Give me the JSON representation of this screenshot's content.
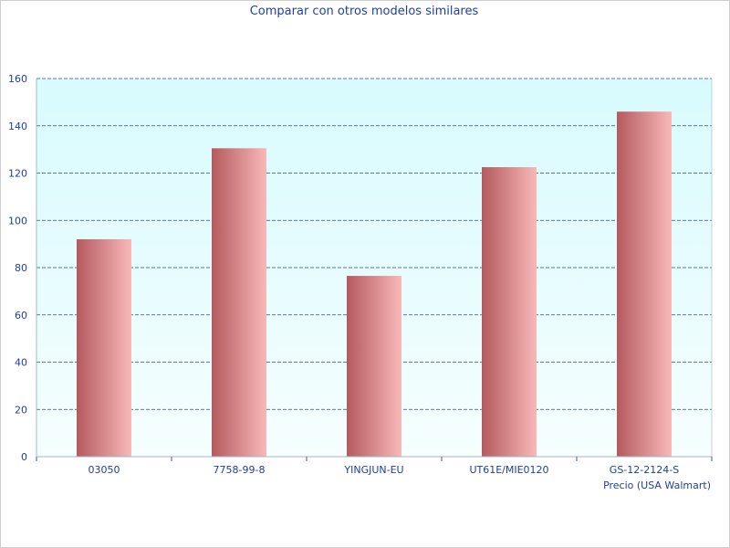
{
  "chart_data": {
    "type": "bar",
    "title": "Comparar con otros modelos similares",
    "xlabel": "Precio (USA Walmart)",
    "ylabel": "",
    "categories": [
      "03050",
      "7758-99-8",
      "YINGJUN-EU",
      "UT61E/MIE0120",
      "GS-12-2124-S"
    ],
    "values": [
      92,
      130.5,
      76.5,
      122.5,
      146
    ],
    "ylim": [
      0,
      160
    ],
    "yticks": [
      0,
      20,
      40,
      60,
      80,
      100,
      120,
      140,
      160
    ],
    "grid": true,
    "colors": {
      "bar_dark": "#b45a5e",
      "bar_light": "#f8b8b8",
      "plot_bg_top": "#d8fbfd",
      "plot_bg_bottom": "#f6fefe",
      "grid": "#2c4a8c",
      "axis": "#9fb8c8",
      "text": "#1f3f9f"
    }
  }
}
